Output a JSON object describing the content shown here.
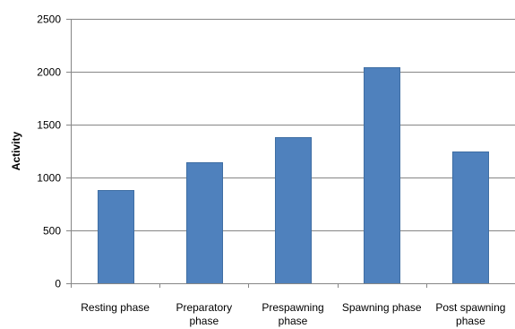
{
  "chart_data": {
    "type": "bar",
    "title": "",
    "xlabel": "",
    "ylabel": "Activity",
    "ylim": [
      0,
      2500
    ],
    "yticks": [
      0,
      500,
      1000,
      1500,
      2000,
      2500
    ],
    "ytick_labels": [
      "0",
      "500",
      "1000",
      "1500",
      "2000",
      "2500"
    ],
    "categories": [
      "Resting phase",
      "Preparatory phase",
      "Prespawning phase",
      "Spawning phase",
      "Post spawning phase"
    ],
    "category_lines": [
      [
        "Resting phase"
      ],
      [
        "Preparatory",
        "phase"
      ],
      [
        "Prespawning",
        "phase"
      ],
      [
        "Spawning phase"
      ],
      [
        "Post spawning",
        "phase"
      ]
    ],
    "values": [
      880,
      1140,
      1385,
      2045,
      1245
    ],
    "grid": true,
    "legend": "none",
    "colors": {
      "bar": "#4f81bd",
      "grid": "#868686"
    }
  }
}
